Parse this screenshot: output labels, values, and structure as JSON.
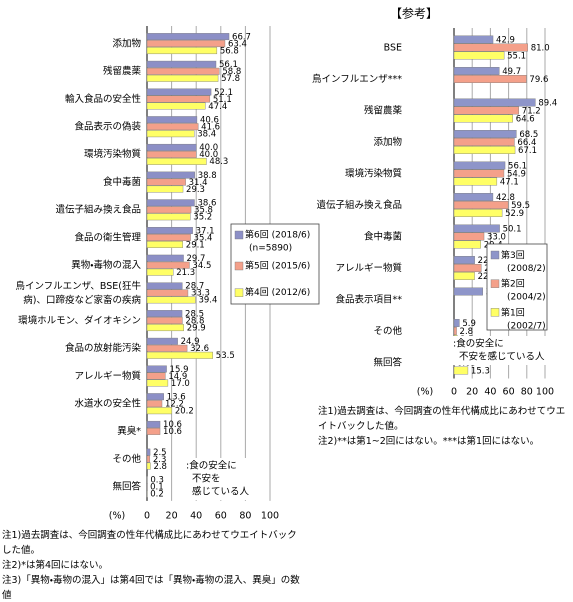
{
  "chart_data": [
    {
      "type": "bar",
      "orientation": "horizontal",
      "categories": [
        "添加物",
        "残留農薬",
        "輸入食品の安全性",
        "食品表示の偽装",
        "環境汚染物質",
        "食中毒菌",
        "遺伝子組み換え食品",
        "食品の衛生管理",
        "異物・毒物の混入",
        "鳥インフルエンザ、BSE(狂牛病)、口蹄疫など家畜の疾病",
        "環境ホルモン、ダイオキシン",
        "食品の放射能汚染",
        "アレルギー物質",
        "水道水の安全性",
        "異臭*",
        "その他",
        "無回答"
      ],
      "series": [
        {
          "name": "第6回 (2018/6)",
          "note": "(n=5890)",
          "color": "#8c8fc6",
          "values": [
            66.7,
            56.1,
            52.1,
            40.6,
            40,
            38.8,
            38.6,
            37.1,
            29.7,
            28.7,
            28.5,
            24.9,
            15.9,
            13.6,
            10.6,
            2.5,
            0.3
          ],
          "value_labels": [
            "66.7",
            "56.1",
            "52.1",
            "40.6",
            "40.0",
            "38.8",
            "38.6",
            "37.1",
            "29.7",
            "28.7",
            "28.5",
            "24.9",
            "15.9",
            "13.6",
            "10.6",
            "2.5",
            "0.3"
          ]
        },
        {
          "name": "第5回 (2015/6)",
          "color": "#f4a08a",
          "values": [
            63.4,
            58.8,
            51.1,
            41.6,
            40,
            31.4,
            35.8,
            35.4,
            34.5,
            33.3,
            28.8,
            32.6,
            14.9,
            12.2,
            10.6,
            2.3,
            0.1
          ],
          "value_labels": [
            "63.4",
            "58.8",
            "51.1",
            "41.6",
            "40.0",
            "31.4",
            "35.8",
            "35.4",
            "34.5",
            "33.3",
            "28.8",
            "32.6",
            "14.9",
            "12.2",
            "10.6",
            "2.3",
            "0.1"
          ]
        },
        {
          "name": "第4回 (2012/6)",
          "color": "#ffff66",
          "values": [
            56.8,
            57.8,
            47.4,
            38.4,
            48.3,
            29.3,
            35.2,
            29.1,
            21.3,
            39.4,
            29.9,
            53.5,
            17,
            20.2,
            null,
            2.8,
            0.2
          ],
          "value_labels": [
            "56.8",
            "57.8",
            "47.4",
            "38.4",
            "48.3",
            "29.3",
            "35.2",
            "29.1",
            "21.3",
            "39.4",
            "29.9",
            "53.5",
            "17.0",
            "20.2",
            null,
            "2.8",
            "0.2"
          ]
        }
      ],
      "x_label": "(%)",
      "xlim": [
        0,
        100
      ],
      "xticks": [
        0,
        20,
        40,
        60,
        80,
        100
      ],
      "grid": true,
      "annotation": [
        ":食の安全に",
        "不安を",
        "感じている人"
      ],
      "notes": [
        "注1)過去調査は、今回調査の性年代構成比にあわせてウエイトバックした値。",
        "注2)*は第4回にはない。",
        "注3)「異物・毒物の混入」は第4回では「異物・毒物の混入、異臭」の数値"
      ]
    },
    {
      "type": "bar",
      "orientation": "horizontal",
      "title": "【参考】",
      "categories": [
        "BSE",
        "鳥インフルエンザ***",
        "残留農薬",
        "添加物",
        "環境汚染物質",
        "遺伝子組み換え食品",
        "食中毒菌",
        "アレルギー物質",
        "食品表示項目**",
        "その他",
        "無回答"
      ],
      "series": [
        {
          "name": "第3回 (2008/2)",
          "color": "#8e95c9",
          "values": [
            42.9,
            49.7,
            89.4,
            68.5,
            56.1,
            42.8,
            50.1,
            22.7,
            31.6,
            5.9,
            0.1
          ],
          "value_labels": [
            "42.9",
            "49.7",
            "89.4",
            "68.5",
            "56.1",
            "42.8",
            "50.1",
            "22.7",
            "31.6",
            "5.9",
            "0.1"
          ]
        },
        {
          "name": "第2回 (2004/2)",
          "color": "#f4a08a",
          "values": [
            81,
            79.6,
            71.2,
            66.4,
            54.9,
            59.5,
            33,
            29.9,
            null,
            2.8,
            0.03
          ],
          "value_labels": [
            "81.0",
            "79.6",
            "71.2",
            "66.4",
            "54.9",
            "59.5",
            "33.0",
            "29.9",
            null,
            "2.8",
            "0.03"
          ]
        },
        {
          "name": "第1回 (2002/7)",
          "color": "#ffff66",
          "values": [
            55.1,
            null,
            64.6,
            67.1,
            47.1,
            52.9,
            29.4,
            22.6,
            null,
            3.5,
            15.3
          ],
          "value_labels": [
            "55.1",
            null,
            "64.6",
            "67.1",
            "47.1",
            "52.9",
            "29.4",
            "22.6",
            null,
            "3.5",
            "15.3"
          ]
        }
      ],
      "x_label": "(%)",
      "xlim": [
        0,
        100
      ],
      "xticks": [
        0,
        20,
        40,
        60,
        80,
        100
      ],
      "grid": true,
      "annotation": [
        ":食の安全に",
        "不安を感じている人"
      ],
      "notes": [
        "注1)過去調査は、今回調査の性年代構成比にあわせてウエイトバックした値。",
        "注2)**は第1~2回にはない。***は第1回にはない。"
      ]
    }
  ]
}
